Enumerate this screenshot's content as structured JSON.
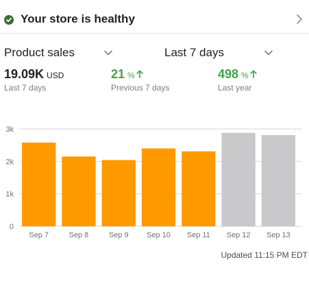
{
  "health": {
    "title": "Your store is healthy",
    "icon": "check-circle-icon",
    "icon_color": "#3c6b3c"
  },
  "selectors": {
    "metric": "Product sales",
    "range": "Last 7 days"
  },
  "stats": [
    {
      "value": "19.09K",
      "unit": "USD",
      "caption": "Last 7 days",
      "trend": ""
    },
    {
      "value": "21",
      "unit": "%",
      "caption": "Previous 7 days",
      "trend": "up"
    },
    {
      "value": "498",
      "unit": "%",
      "caption": "Last year",
      "trend": "up"
    }
  ],
  "colors": {
    "positive": "#3ea34b",
    "current_bar": "#ff9900",
    "future_bar": "#c9c9cc",
    "grid": "#d5d5d5"
  },
  "chart_data": {
    "type": "bar",
    "categories": [
      "Sep 7",
      "Sep 8",
      "Sep 9",
      "Sep 10",
      "Sep 11",
      "Sep 12",
      "Sep 13"
    ],
    "values": [
      2580,
      2150,
      2040,
      2400,
      2310,
      2880,
      2810
    ],
    "bar_status": [
      "current",
      "current",
      "current",
      "current",
      "current",
      "comparison",
      "comparison"
    ],
    "y_ticks": [
      0,
      1000,
      2000,
      3000
    ],
    "y_tick_labels": [
      "0",
      "1k",
      "2k",
      "3k"
    ],
    "ylim": [
      0,
      3000
    ],
    "grid": true,
    "title": "",
    "xlabel": "",
    "ylabel": ""
  },
  "footer": {
    "updated": "Updated 11:15 PM EDT"
  }
}
